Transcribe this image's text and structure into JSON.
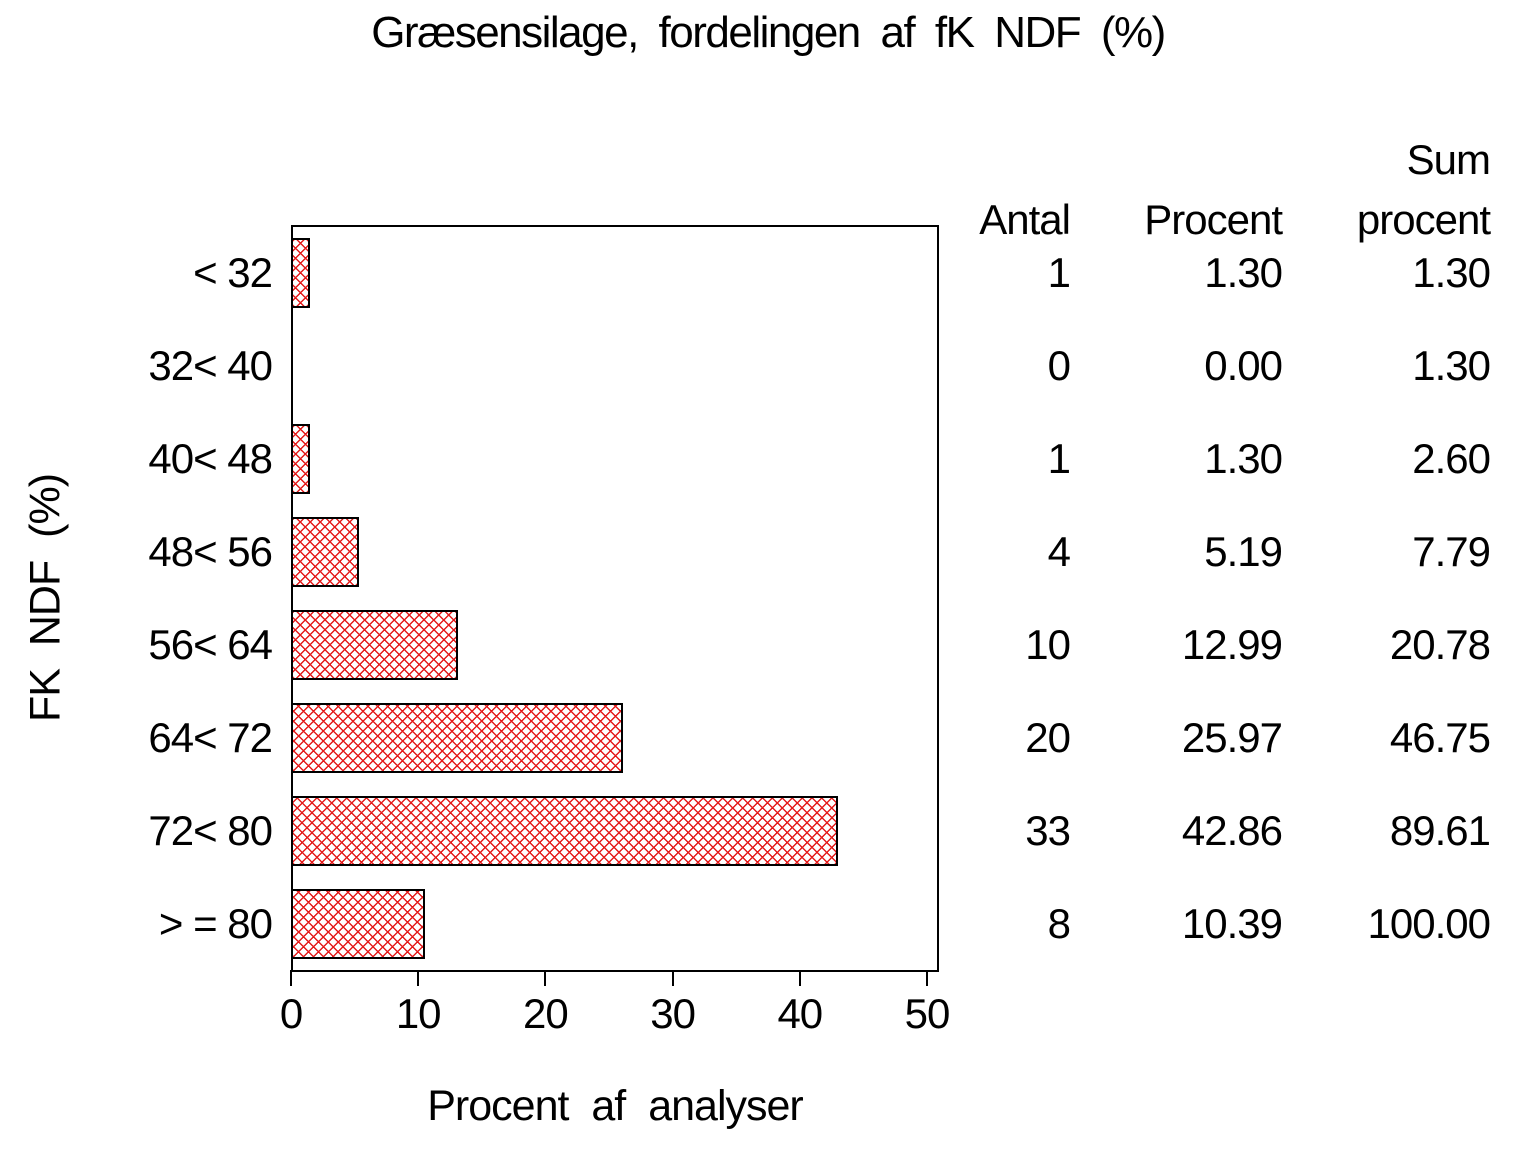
{
  "title": "Græsensilage, fordelingen af fK NDF (%)",
  "accent_colors": {
    "bar_hatch_red": "#e41c1c",
    "bar_border": "#000000",
    "frame": "#000000",
    "background": "#ffffff",
    "text": "#000000"
  },
  "chart_data": {
    "type": "bar",
    "orientation": "horizontal",
    "title": "Græsensilage, fordelingen af fK NDF (%)",
    "xlabel": "Procent af analyser",
    "ylabel": "FK NDF (%)",
    "categories": [
      "< 32",
      "32< 40",
      "40< 48",
      "48< 56",
      "56< 64",
      "64< 72",
      "72< 80",
      "> = 80"
    ],
    "values": [
      1.3,
      0.0,
      1.3,
      5.19,
      12.99,
      25.97,
      42.86,
      10.39
    ],
    "xlim": [
      0,
      50.6
    ],
    "xticks": [
      "0",
      "10",
      "20",
      "30",
      "40",
      "50"
    ],
    "xtick_values": [
      0,
      10,
      20,
      30,
      40,
      50
    ],
    "grid": false,
    "bar_pattern": "crosshatch",
    "legend": "none",
    "side_table": {
      "header_top": "Sum",
      "headers": [
        "Antal",
        "Procent",
        "procent"
      ],
      "columns": [
        "Antal",
        "Procent",
        "Sum procent"
      ],
      "rows": [
        [
          "1",
          "1.30",
          "1.30"
        ],
        [
          "0",
          "0.00",
          "1.30"
        ],
        [
          "1",
          "1.30",
          "2.60"
        ],
        [
          "4",
          "5.19",
          "7.79"
        ],
        [
          "10",
          "12.99",
          "20.78"
        ],
        [
          "20",
          "25.97",
          "46.75"
        ],
        [
          "33",
          "42.86",
          "89.61"
        ],
        [
          "8",
          "10.39",
          "100.00"
        ]
      ]
    }
  }
}
